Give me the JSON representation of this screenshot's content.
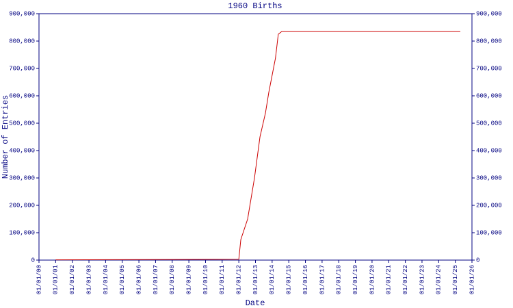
{
  "chart_data": {
    "type": "line",
    "title": "1960 Births",
    "x_label": "Date",
    "y_label": "Number of Entries",
    "xlim": [
      2000,
      2026
    ],
    "xticks": [
      {
        "value": 2000,
        "label": "01/01/00"
      },
      {
        "value": 2001,
        "label": "01/01/01"
      },
      {
        "value": 2002,
        "label": "01/01/02"
      },
      {
        "value": 2003,
        "label": "01/01/03"
      },
      {
        "value": 2004,
        "label": "01/01/04"
      },
      {
        "value": 2005,
        "label": "01/01/05"
      },
      {
        "value": 2006,
        "label": "01/01/06"
      },
      {
        "value": 2007,
        "label": "01/01/07"
      },
      {
        "value": 2008,
        "label": "01/01/08"
      },
      {
        "value": 2009,
        "label": "01/01/09"
      },
      {
        "value": 2010,
        "label": "01/01/10"
      },
      {
        "value": 2011,
        "label": "01/01/11"
      },
      {
        "value": 2012,
        "label": "01/01/12"
      },
      {
        "value": 2013,
        "label": "01/01/13"
      },
      {
        "value": 2014,
        "label": "01/01/14"
      },
      {
        "value": 2015,
        "label": "01/01/15"
      },
      {
        "value": 2016,
        "label": "01/01/16"
      },
      {
        "value": 2017,
        "label": "01/01/17"
      },
      {
        "value": 2018,
        "label": "01/01/18"
      },
      {
        "value": 2019,
        "label": "01/01/19"
      },
      {
        "value": 2020,
        "label": "01/01/20"
      },
      {
        "value": 2021,
        "label": "01/01/21"
      },
      {
        "value": 2022,
        "label": "01/01/22"
      },
      {
        "value": 2023,
        "label": "01/01/23"
      },
      {
        "value": 2024,
        "label": "01/01/24"
      },
      {
        "value": 2025,
        "label": "01/01/25"
      },
      {
        "value": 2026,
        "label": "01/01/26"
      }
    ],
    "ylim": [
      0,
      900000
    ],
    "yticks": [
      0,
      {
        "value": 100000,
        "label": "100,000"
      },
      {
        "value": 200000,
        "label": "200,000"
      },
      {
        "value": 300000,
        "label": "300,000"
      },
      {
        "value": 400000,
        "label": "400,000"
      },
      {
        "value": 500000,
        "label": "500,000"
      },
      {
        "value": 600000,
        "label": "600,000"
      },
      {
        "value": 700000,
        "label": "700,000"
      },
      {
        "value": 800000,
        "label": "800,000"
      },
      {
        "value": 900000,
        "label": "900,000"
      }
    ],
    "series": [
      {
        "color": "#cc0000",
        "x": [
          2001,
          2012,
          2012.12,
          2012.53,
          2012.94,
          2013.27,
          2013.6,
          2013.8,
          2014.2,
          2014.37,
          2014.58,
          2025.3
        ],
        "values": [
          1000,
          3000,
          75000,
          150000,
          300000,
          450000,
          537500,
          612500,
          737500,
          825000,
          835000,
          835000
        ]
      }
    ]
  }
}
